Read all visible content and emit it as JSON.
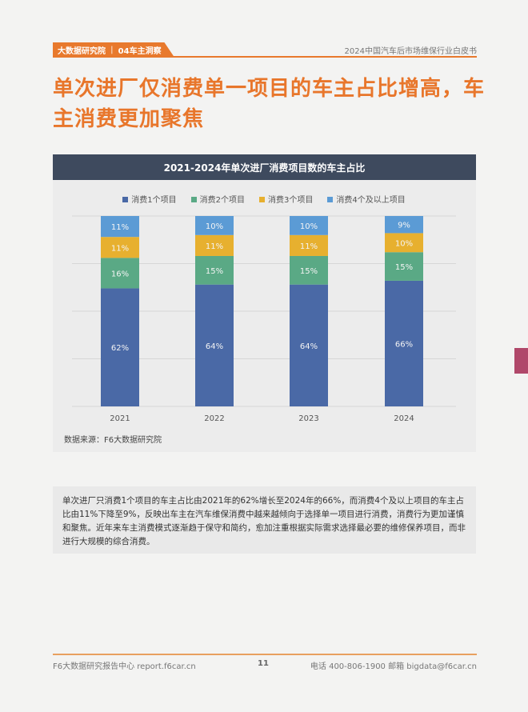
{
  "header": {
    "logo": "大数据研究院",
    "section": "04车主洞察",
    "doc_title": "2024中国汽车后市场维保行业白皮书"
  },
  "title": "单次进厂仅消费单一项目的车主占比增高，车主消费更加聚焦",
  "chart_data": {
    "type": "bar",
    "stacked": true,
    "title": "2021-2024年单次进厂消费项目数的车主占比",
    "categories": [
      "2021",
      "2022",
      "2023",
      "2024"
    ],
    "series": [
      {
        "name": "消费1个项目",
        "color": "#4a69a6",
        "values": [
          62,
          64,
          64,
          66
        ]
      },
      {
        "name": "消费2个项目",
        "color": "#5aa985",
        "values": [
          16,
          15,
          15,
          15
        ]
      },
      {
        "name": "消费3个项目",
        "color": "#e7b02f",
        "values": [
          11,
          11,
          11,
          10
        ]
      },
      {
        "name": "消费4个及以上项目",
        "color": "#5b9bd5",
        "values": [
          11,
          10,
          10,
          9
        ]
      }
    ],
    "ylim": [
      0,
      100
    ],
    "value_suffix": "%",
    "grid": true,
    "legend": "top"
  },
  "source": "数据来源：F6大数据研究院",
  "body_text": "单次进厂只消费1个项目的车主占比由2021年的62%增长至2024年的66%，而消费4个及以上项目的车主占比由11%下降至9%，反映出车主在汽车维保消费中越来越倾向于选择单一项目进行消费，消费行为更加谨慎和聚焦。近年来车主消费模式逐渐趋于保守和简约，愈加注重根据实际需求选择最必要的维修保养项目，而非进行大规模的综合消费。",
  "footer": {
    "left": "F6大数据研究报告中心 report.f6car.cn",
    "page": "11",
    "right": "电话 400-806-1900  邮箱 bigdata@f6car.cn"
  },
  "colors": {
    "accent": "#e8792d",
    "title_bar": "#3e4a5e",
    "side_tab": "#b0486a"
  }
}
